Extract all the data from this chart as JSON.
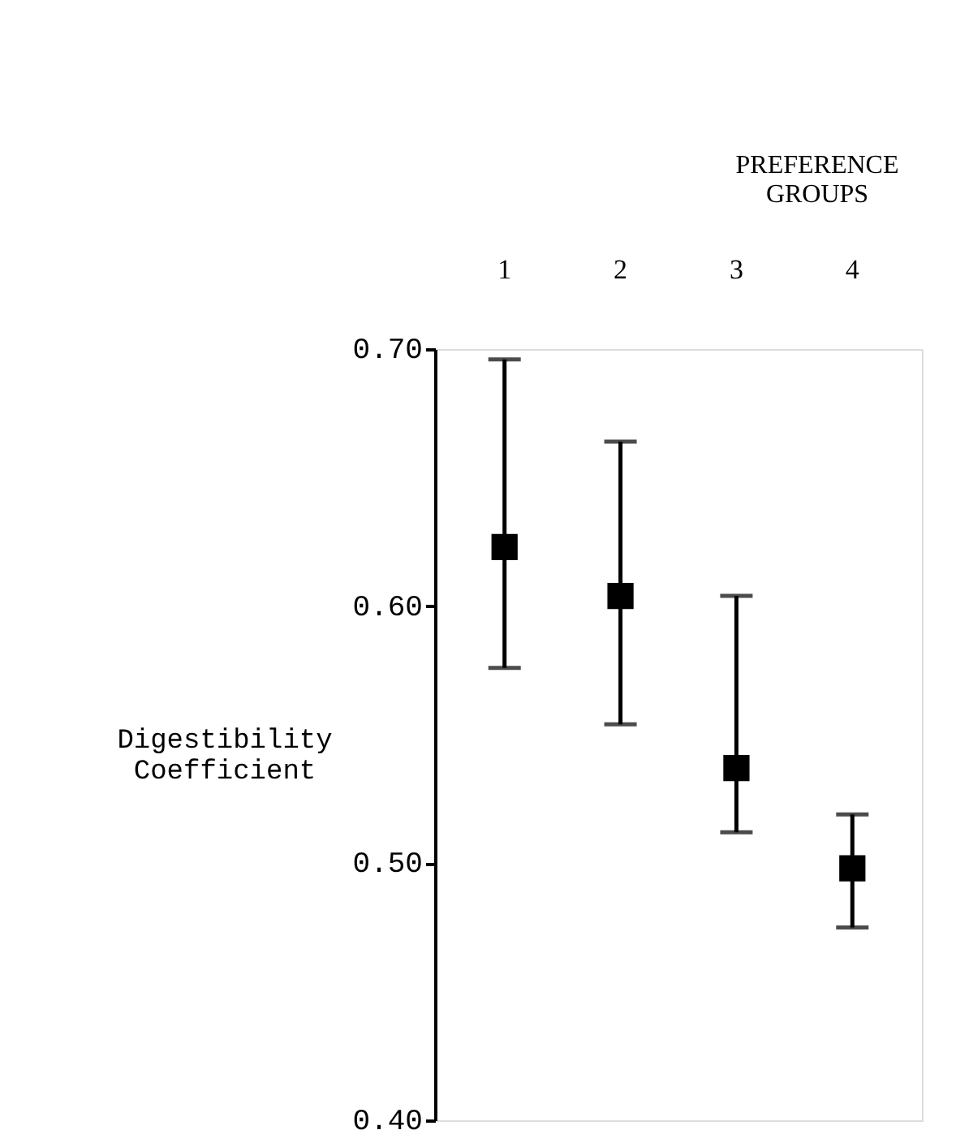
{
  "chart_data": {
    "type": "scatter",
    "xlabel": "PREFERENCE\nGROUPS",
    "ylabel": "Digestibility\nCoefficient",
    "categories": [
      "1",
      "2",
      "3",
      "4"
    ],
    "series": [
      {
        "color": "#000000",
        "values": [
          0.623,
          0.604,
          0.537,
          0.498
        ],
        "errors": [
          [
            0.576,
            0.696
          ],
          [
            0.554,
            0.664
          ],
          [
            0.512,
            0.604
          ],
          [
            0.475,
            0.519
          ]
        ]
      }
    ],
    "ylim": [
      0.4,
      0.7
    ],
    "yticks": [
      {
        "value": 0.4,
        "label": "0.40"
      },
      {
        "value": 0.5,
        "label": "0.50"
      },
      {
        "value": 0.6,
        "label": "0.60"
      },
      {
        "value": 0.7,
        "label": "0.70"
      }
    ],
    "marker": "square",
    "grid": false
  }
}
